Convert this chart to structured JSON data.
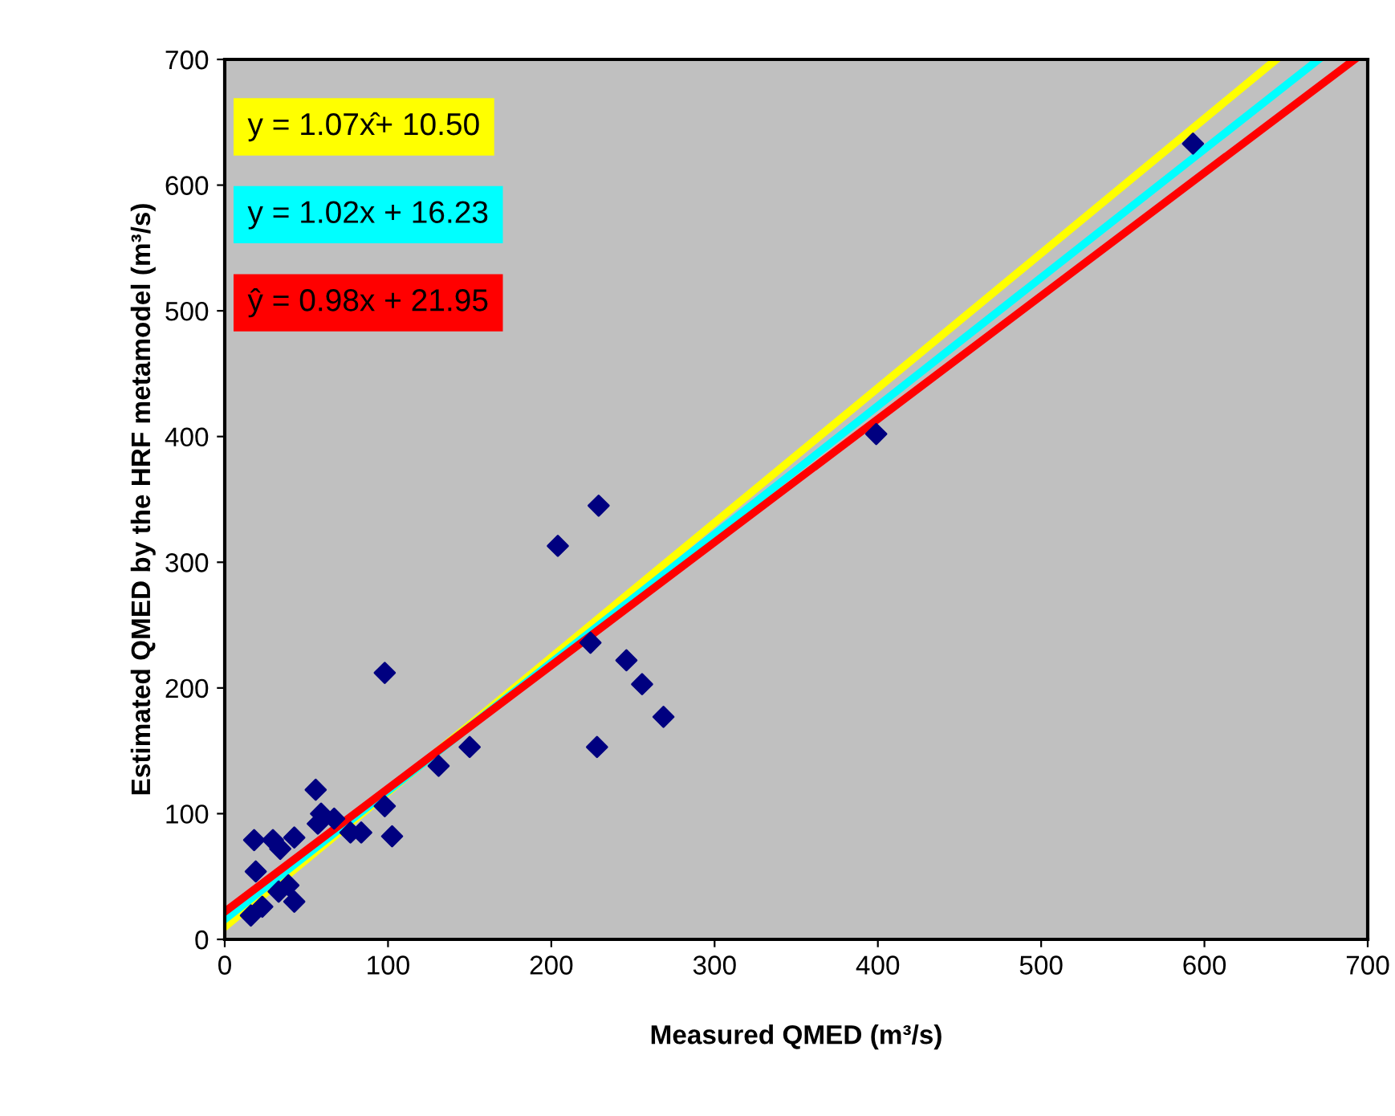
{
  "chart_data": {
    "type": "scatter",
    "xlabel": "Measured QMED (m³/s)",
    "ylabel": "Estimated QMED by the HRF metamodel (m³/s)",
    "xlim": [
      0,
      700
    ],
    "ylim": [
      0,
      700
    ],
    "xticks": [
      0,
      100,
      200,
      300,
      400,
      500,
      600,
      700
    ],
    "yticks": [
      0,
      100,
      200,
      300,
      400,
      500,
      600,
      700
    ],
    "grid": false,
    "legend": "top left",
    "series": [
      {
        "marker": "diamond",
        "color": "#000080",
        "x": [
          18,
          19,
          16,
          23,
          29.5,
          34,
          42.6,
          33,
          42.6,
          39,
          55.7,
          59,
          57,
          67,
          77,
          83.6,
          98,
          102.5,
          98,
          131,
          150,
          224,
          246,
          255.6,
          268.7,
          228,
          229,
          204,
          399,
          593
        ],
        "values": [
          79,
          54,
          19,
          26,
          79,
          72,
          81,
          38,
          30,
          43,
          119,
          100,
          92,
          96,
          85,
          85,
          106,
          82,
          212,
          138,
          153,
          236,
          222,
          203,
          177,
          153,
          345,
          313,
          402,
          633
        ]
      },
      {
        "type": "line",
        "name": "y = 1.07x̂+ 10.50",
        "color": "#ffff00",
        "x": [
          0,
          644
        ],
        "values": [
          10,
          700
        ]
      },
      {
        "type": "line",
        "name": "y = 1.02x + 16.23",
        "color": "#00ffff",
        "x": [
          0,
          670
        ],
        "values": [
          16,
          700
        ]
      },
      {
        "type": "line",
        "name": "ŷ = 0.98x + 21.95",
        "color": "#ff0000",
        "x": [
          0,
          692
        ],
        "values": [
          22,
          700
        ]
      }
    ]
  }
}
